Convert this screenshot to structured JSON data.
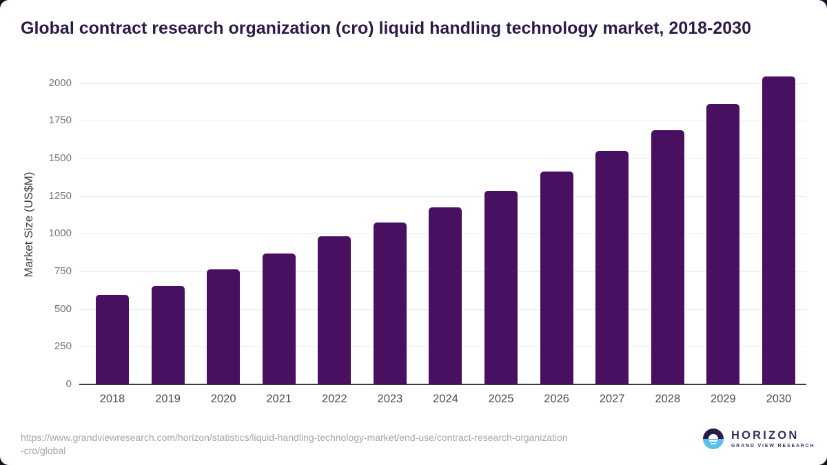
{
  "title": "Global contract research organization (cro) liquid handling technology market, 2018-2030",
  "chart_data": {
    "type": "bar",
    "categories": [
      "2018",
      "2019",
      "2020",
      "2021",
      "2022",
      "2023",
      "2024",
      "2025",
      "2026",
      "2027",
      "2028",
      "2029",
      "2030"
    ],
    "values": [
      596,
      654,
      765,
      871,
      984,
      1076,
      1177,
      1287,
      1412,
      1549,
      1689,
      1863,
      2044
    ],
    "title": "Global contract research organization (cro) liquid handling technology market, 2018-2030",
    "xlabel": "",
    "ylabel": "Market Size (US$M)",
    "ylim": [
      0,
      2100
    ],
    "yticks": [
      0,
      250,
      500,
      750,
      1000,
      1250,
      1500,
      1750,
      2000
    ],
    "grid": true,
    "legend": false,
    "bar_color": "#491061"
  },
  "source": {
    "lines": [
      "https://www.grandviewresearch.com/horizon/statistics/liquid-handling-technology-market/end-use/contract-research-organization",
      "-cro/global"
    ]
  },
  "logo": {
    "name": "HORIZON",
    "subtitle": "GRAND VIEW RESEARCH",
    "icon": "sunset-horizon-icon",
    "colors": {
      "top": "#2b1b4a",
      "bottom": "#5bc0ea",
      "text": "#3b2b63"
    }
  },
  "colors": {
    "page_background": "#171120",
    "card_background": "#ffffff",
    "title_text": "#2e1a47",
    "gridline": "#e8e8e8",
    "axis_line": "#3d3d3d",
    "y_tick_text": "#757575",
    "x_tick_text": "#4d4d4d",
    "source_text": "#a6a6a6"
  }
}
